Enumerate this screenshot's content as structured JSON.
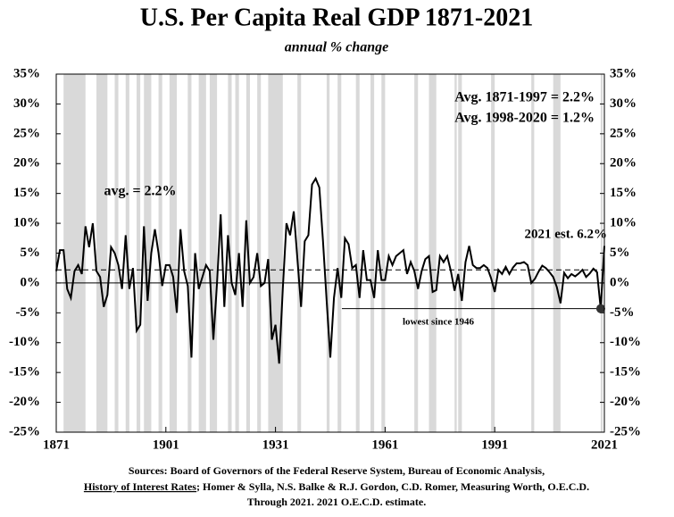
{
  "chart_data": {
    "type": "line",
    "title": "U.S. Per Capita Real GDP 1871-2021",
    "subtitle": "annual % change",
    "x": [
      1871,
      1872,
      1873,
      1874,
      1875,
      1876,
      1877,
      1878,
      1879,
      1880,
      1881,
      1882,
      1883,
      1884,
      1885,
      1886,
      1887,
      1888,
      1889,
      1890,
      1891,
      1892,
      1893,
      1894,
      1895,
      1896,
      1897,
      1898,
      1899,
      1900,
      1901,
      1902,
      1903,
      1904,
      1905,
      1906,
      1907,
      1908,
      1909,
      1910,
      1911,
      1912,
      1913,
      1914,
      1915,
      1916,
      1917,
      1918,
      1919,
      1920,
      1921,
      1922,
      1923,
      1924,
      1925,
      1926,
      1927,
      1928,
      1929,
      1930,
      1931,
      1932,
      1933,
      1934,
      1935,
      1936,
      1937,
      1938,
      1939,
      1940,
      1941,
      1942,
      1943,
      1944,
      1945,
      1946,
      1947,
      1948,
      1949,
      1950,
      1951,
      1952,
      1953,
      1954,
      1955,
      1956,
      1957,
      1958,
      1959,
      1960,
      1961,
      1962,
      1963,
      1964,
      1965,
      1966,
      1967,
      1968,
      1969,
      1970,
      1971,
      1972,
      1973,
      1974,
      1975,
      1976,
      1977,
      1978,
      1979,
      1980,
      1981,
      1982,
      1983,
      1984,
      1985,
      1986,
      1987,
      1988,
      1989,
      1990,
      1991,
      1992,
      1993,
      1994,
      1995,
      1996,
      1997,
      1998,
      1999,
      2000,
      2001,
      2002,
      2003,
      2004,
      2005,
      2006,
      2007,
      2008,
      2009,
      2010,
      2011,
      2012,
      2013,
      2014,
      2015,
      2016,
      2017,
      2018,
      2019,
      2020,
      2021
    ],
    "series": [
      {
        "name": "Per capita real GDP",
        "color": "#000000",
        "values": [
          2,
          5.5,
          5.5,
          -1,
          -2.5,
          2,
          3,
          1.5,
          9.5,
          6,
          10,
          2,
          1,
          -4,
          -2,
          6,
          5,
          3,
          -1,
          8,
          -1,
          2.5,
          -8,
          -7,
          9.5,
          -3,
          5,
          9,
          5,
          -0.5,
          3,
          3,
          1,
          -5,
          9,
          2,
          -0.5,
          -12.5,
          5,
          -1,
          1,
          3,
          2,
          -9.5,
          0,
          11.5,
          -4,
          8,
          0,
          -2,
          5,
          -4,
          10.5,
          0,
          1,
          5,
          -0.5,
          0,
          4,
          -9.5,
          -7,
          -13.5,
          -1,
          10,
          8,
          12,
          4,
          -4,
          7,
          8,
          16.5,
          17.5,
          16,
          7,
          -3,
          -12.5,
          -2.5,
          2.5,
          -2.5,
          7.5,
          6.5,
          2.5,
          3,
          -2.5,
          5.5,
          0.5,
          0.5,
          -2.5,
          5.5,
          0.5,
          0.5,
          4.5,
          3,
          4.5,
          5,
          5.5,
          1.5,
          3.5,
          2,
          -1,
          2,
          4,
          4.5,
          -1.5,
          -1.2,
          4.5,
          3.5,
          4.5,
          2,
          -1.3,
          1.5,
          -3,
          3.5,
          6.2,
          3,
          2.5,
          2.5,
          3,
          2.5,
          0.8,
          -1.5,
          2.2,
          1.5,
          2.7,
          1.5,
          2.6,
          3.3,
          3.3,
          3.5,
          3,
          0,
          0.7,
          1.9,
          2.9,
          2.5,
          1.8,
          1,
          -0.7,
          -3.4,
          1.7,
          0.8,
          1.5,
          1.1,
          1.6,
          2.2,
          1,
          1.6,
          2.4,
          1.8,
          -4.3,
          6.2
        ]
      }
    ],
    "xlim": [
      1871,
      2021
    ],
    "xticks": [
      1871,
      1901,
      1931,
      1961,
      1991,
      2021
    ],
    "ylim": [
      -25,
      35
    ],
    "yticks": [
      {
        "value": -25,
        "label": "-25%"
      },
      {
        "value": -20,
        "label": "-20%"
      },
      {
        "value": -15,
        "label": "-15%"
      },
      {
        "value": -10,
        "label": "-10%"
      },
      {
        "value": -5,
        "label": "-5%"
      },
      {
        "value": 0,
        "label": "0%"
      },
      {
        "value": 5,
        "label": "5%"
      },
      {
        "value": 10,
        "label": "10%"
      },
      {
        "value": 15,
        "label": "15%"
      },
      {
        "value": 20,
        "label": "20%"
      },
      {
        "value": 25,
        "label": "25%"
      },
      {
        "value": 30,
        "label": "30%"
      },
      {
        "value": 35,
        "label": "35%"
      }
    ],
    "avg": 2.2,
    "recessions": [
      [
        1873,
        1879
      ],
      [
        1882,
        1885
      ],
      [
        1887,
        1888
      ],
      [
        1890,
        1891
      ],
      [
        1893,
        1894
      ],
      [
        1895,
        1897
      ],
      [
        1899,
        1900
      ],
      [
        1902,
        1904
      ],
      [
        1907,
        1908
      ],
      [
        1910,
        1912
      ],
      [
        1913,
        1915
      ],
      [
        1918,
        1919
      ],
      [
        1920,
        1921
      ],
      [
        1923,
        1924
      ],
      [
        1926,
        1927
      ],
      [
        1929,
        1933
      ],
      [
        1937,
        1938
      ],
      [
        1945,
        1945.8
      ],
      [
        1948,
        1949
      ],
      [
        1953,
        1954
      ],
      [
        1957,
        1958
      ],
      [
        1960,
        1961
      ],
      [
        1969,
        1970
      ],
      [
        1973,
        1975
      ],
      [
        1980,
        1980.6
      ],
      [
        1981,
        1982
      ],
      [
        1990,
        1991
      ],
      [
        2001,
        2001.8
      ],
      [
        2007,
        2009
      ],
      [
        2020,
        2020.5
      ]
    ],
    "recession_color": "#d9d9d9",
    "annotations": [
      "avg. = 2.2%",
      "Avg. 1871-1997 = 2.2%",
      "Avg. 1998-2020 = 1.2%",
      "2021 est. 6.2%",
      "lowest since 1946"
    ],
    "sources": [
      "Sources: Board of Governors of the Federal Reserve System, Bureau of Economic Analysis,",
      [
        "History of Interest Rates",
        "; Homer & Sylla, N.S. Balke & R.J. Gordon, C.D. Romer, Measuring Worth, O.E.C.D."
      ],
      "Through 2021. 2021 O.E.C.D. estimate."
    ]
  }
}
